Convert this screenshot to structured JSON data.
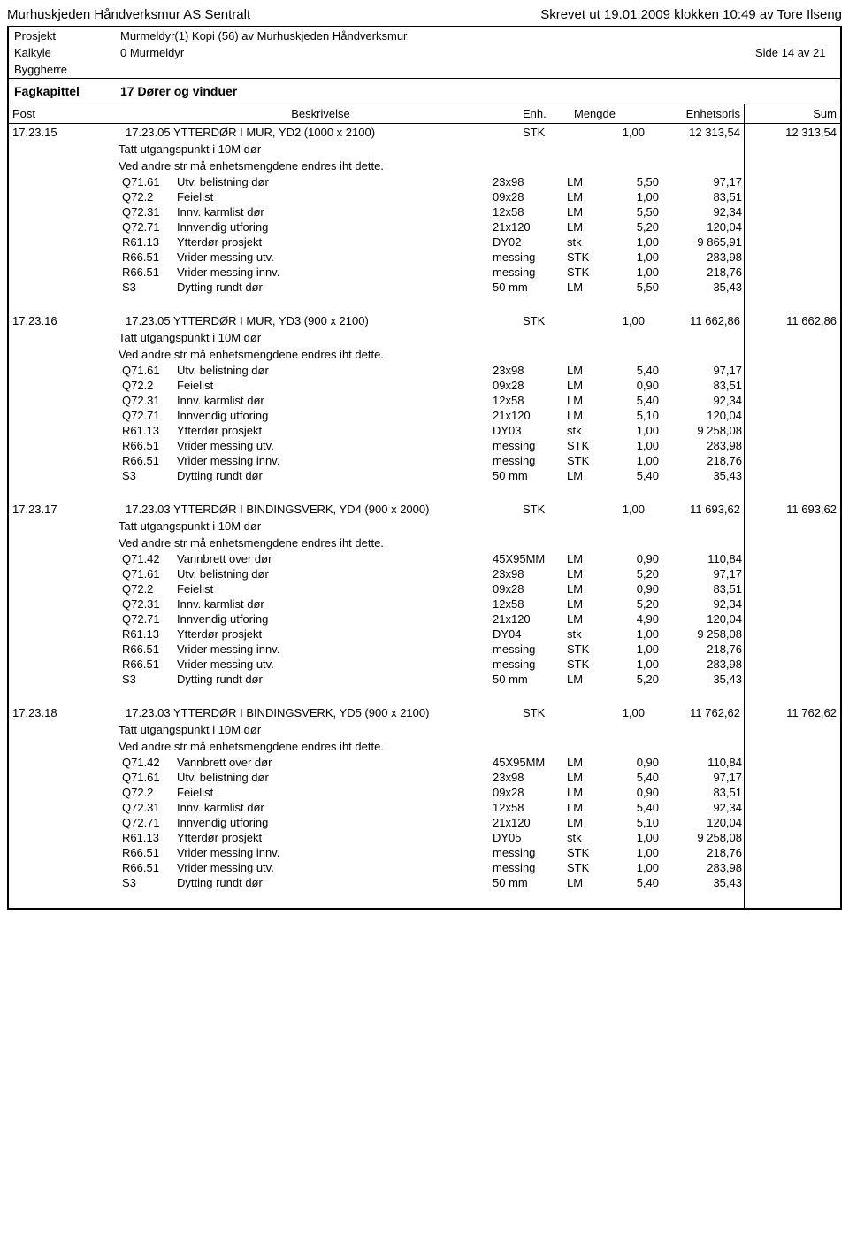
{
  "header": {
    "company": "Murhuskjeden Håndverksmur AS Sentralt",
    "printed": "Skrevet ut 19.01.2009 klokken 10:49 av Tore Ilseng"
  },
  "meta": {
    "prosjekt_label": "Prosjekt",
    "prosjekt_value": "Murmeldyr(1) Kopi (56) av Murhuskjeden Håndverksmur",
    "kalkyle_label": "Kalkyle",
    "kalkyle_value": "0 Murmeldyr",
    "side": "Side 14 av 21",
    "byggherre_label": "Byggherre"
  },
  "fagkapittel": {
    "label": "Fagkapittel",
    "value": "17 Dører og vinduer"
  },
  "columns": {
    "post": "Post",
    "beskrivelse": "Beskrivelse",
    "enh": "Enh.",
    "mengde": "Mengde",
    "enhetspris": "Enhetspris",
    "sum": "Sum"
  },
  "sections": [
    {
      "post": "17.23.15",
      "desc": "17.23.05 YTTERDØR I MUR, YD2 (1000 x 2100)",
      "enh": "STK",
      "mengde": "1,00",
      "pris": "12 313,54",
      "sum": "12 313,54",
      "notes": [
        "Tatt utgangspunkt i 10M dør",
        "Ved andre str må enhetsmengdene endres iht dette."
      ],
      "rows": [
        {
          "code": "Q71.61",
          "desc": "Utv. belistning dør",
          "dim": "23x98",
          "unit": "LM",
          "qty": "5,50",
          "price": "97,17"
        },
        {
          "code": "Q72.2",
          "desc": "Feielist",
          "dim": "09x28",
          "unit": "LM",
          "qty": "1,00",
          "price": "83,51"
        },
        {
          "code": "Q72.31",
          "desc": "Innv. karmlist dør",
          "dim": "12x58",
          "unit": "LM",
          "qty": "5,50",
          "price": "92,34"
        },
        {
          "code": "Q72.71",
          "desc": "Innvendig utforing",
          "dim": "21x120",
          "unit": "LM",
          "qty": "5,20",
          "price": "120,04"
        },
        {
          "code": "R61.13",
          "desc": "Ytterdør prosjekt",
          "dim": "DY02",
          "unit": "stk",
          "qty": "1,00",
          "price": "9 865,91"
        },
        {
          "code": "R66.51",
          "desc": "Vrider messing utv.",
          "dim": "messing",
          "unit": "STK",
          "qty": "1,00",
          "price": "283,98"
        },
        {
          "code": "R66.51",
          "desc": "Vrider messing innv.",
          "dim": "messing",
          "unit": "STK",
          "qty": "1,00",
          "price": "218,76"
        },
        {
          "code": "S3",
          "desc": "Dytting rundt dør",
          "dim": "50 mm",
          "unit": "LM",
          "qty": "5,50",
          "price": "35,43"
        }
      ]
    },
    {
      "post": "17.23.16",
      "desc": "17.23.05 YTTERDØR I MUR, YD3 (900 x 2100)",
      "enh": "STK",
      "mengde": "1,00",
      "pris": "11 662,86",
      "sum": "11 662,86",
      "notes": [
        "Tatt utgangspunkt i 10M dør",
        "Ved andre str må enhetsmengdene endres iht dette."
      ],
      "rows": [
        {
          "code": "Q71.61",
          "desc": "Utv. belistning dør",
          "dim": "23x98",
          "unit": "LM",
          "qty": "5,40",
          "price": "97,17"
        },
        {
          "code": "Q72.2",
          "desc": "Feielist",
          "dim": "09x28",
          "unit": "LM",
          "qty": "0,90",
          "price": "83,51"
        },
        {
          "code": "Q72.31",
          "desc": "Innv. karmlist dør",
          "dim": "12x58",
          "unit": "LM",
          "qty": "5,40",
          "price": "92,34"
        },
        {
          "code": "Q72.71",
          "desc": "Innvendig utforing",
          "dim": "21x120",
          "unit": "LM",
          "qty": "5,10",
          "price": "120,04"
        },
        {
          "code": "R61.13",
          "desc": "Ytterdør prosjekt",
          "dim": "DY03",
          "unit": "stk",
          "qty": "1,00",
          "price": "9 258,08"
        },
        {
          "code": "R66.51",
          "desc": "Vrider messing utv.",
          "dim": "messing",
          "unit": "STK",
          "qty": "1,00",
          "price": "283,98"
        },
        {
          "code": "R66.51",
          "desc": "Vrider messing innv.",
          "dim": "messing",
          "unit": "STK",
          "qty": "1,00",
          "price": "218,76"
        },
        {
          "code": "S3",
          "desc": "Dytting rundt dør",
          "dim": "50 mm",
          "unit": "LM",
          "qty": "5,40",
          "price": "35,43"
        }
      ]
    },
    {
      "post": "17.23.17",
      "desc": "17.23.03 YTTERDØR I BINDINGSVERK, YD4 (900 x 2000)",
      "enh": "STK",
      "mengde": "1,00",
      "pris": "11 693,62",
      "sum": "11 693,62",
      "notes": [
        "Tatt utgangspunkt i 10M dør",
        "Ved andre str må enhetsmengdene endres iht dette."
      ],
      "rows": [
        {
          "code": "Q71.42",
          "desc": "Vannbrett over dør",
          "dim": "45X95MM",
          "unit": "LM",
          "qty": "0,90",
          "price": "110,84"
        },
        {
          "code": "Q71.61",
          "desc": "Utv. belistning dør",
          "dim": "23x98",
          "unit": "LM",
          "qty": "5,20",
          "price": "97,17"
        },
        {
          "code": "Q72.2",
          "desc": "Feielist",
          "dim": "09x28",
          "unit": "LM",
          "qty": "0,90",
          "price": "83,51"
        },
        {
          "code": "Q72.31",
          "desc": "Innv. karmlist dør",
          "dim": "12x58",
          "unit": "LM",
          "qty": "5,20",
          "price": "92,34"
        },
        {
          "code": "Q72.71",
          "desc": "Innvendig utforing",
          "dim": "21x120",
          "unit": "LM",
          "qty": "4,90",
          "price": "120,04"
        },
        {
          "code": "R61.13",
          "desc": "Ytterdør prosjekt",
          "dim": "DY04",
          "unit": "stk",
          "qty": "1,00",
          "price": "9 258,08"
        },
        {
          "code": "R66.51",
          "desc": "Vrider messing innv.",
          "dim": "messing",
          "unit": "STK",
          "qty": "1,00",
          "price": "218,76"
        },
        {
          "code": "R66.51",
          "desc": "Vrider messing utv.",
          "dim": "messing",
          "unit": "STK",
          "qty": "1,00",
          "price": "283,98"
        },
        {
          "code": "S3",
          "desc": "Dytting rundt dør",
          "dim": "50 mm",
          "unit": "LM",
          "qty": "5,20",
          "price": "35,43"
        }
      ]
    },
    {
      "post": "17.23.18",
      "desc": "17.23.03 YTTERDØR I BINDINGSVERK, YD5 (900 x 2100)",
      "enh": "STK",
      "mengde": "1,00",
      "pris": "11 762,62",
      "sum": "11 762,62",
      "notes": [
        "Tatt utgangspunkt i 10M dør",
        "Ved andre str må enhetsmengdene endres iht dette."
      ],
      "rows": [
        {
          "code": "Q71.42",
          "desc": "Vannbrett over dør",
          "dim": "45X95MM",
          "unit": "LM",
          "qty": "0,90",
          "price": "110,84"
        },
        {
          "code": "Q71.61",
          "desc": "Utv. belistning dør",
          "dim": "23x98",
          "unit": "LM",
          "qty": "5,40",
          "price": "97,17"
        },
        {
          "code": "Q72.2",
          "desc": "Feielist",
          "dim": "09x28",
          "unit": "LM",
          "qty": "0,90",
          "price": "83,51"
        },
        {
          "code": "Q72.31",
          "desc": "Innv. karmlist dør",
          "dim": "12x58",
          "unit": "LM",
          "qty": "5,40",
          "price": "92,34"
        },
        {
          "code": "Q72.71",
          "desc": "Innvendig utforing",
          "dim": "21x120",
          "unit": "LM",
          "qty": "5,10",
          "price": "120,04"
        },
        {
          "code": "R61.13",
          "desc": "Ytterdør prosjekt",
          "dim": "DY05",
          "unit": "stk",
          "qty": "1,00",
          "price": "9 258,08"
        },
        {
          "code": "R66.51",
          "desc": "Vrider messing innv.",
          "dim": "messing",
          "unit": "STK",
          "qty": "1,00",
          "price": "218,76"
        },
        {
          "code": "R66.51",
          "desc": "Vrider messing utv.",
          "dim": "messing",
          "unit": "STK",
          "qty": "1,00",
          "price": "283,98"
        },
        {
          "code": "S3",
          "desc": "Dytting rundt dør",
          "dim": "50 mm",
          "unit": "LM",
          "qty": "5,40",
          "price": "35,43"
        }
      ]
    }
  ]
}
